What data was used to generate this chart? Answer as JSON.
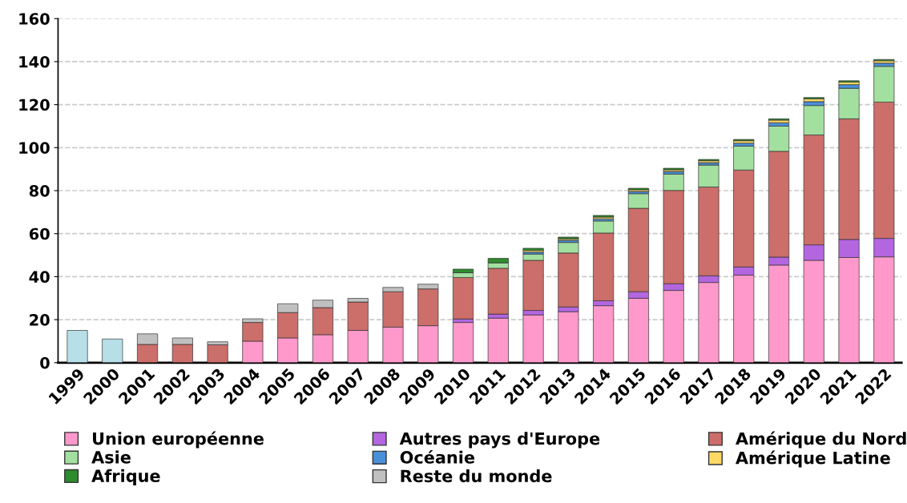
{
  "chart_data": {
    "type": "bar",
    "stacked": true,
    "categories": [
      "1999",
      "2000",
      "2001",
      "2002",
      "2003",
      "2004",
      "2005",
      "2006",
      "2007",
      "2008",
      "2009",
      "2010",
      "2011",
      "2012",
      "2013",
      "2014",
      "2015",
      "2016",
      "2017",
      "2018",
      "2019",
      "2020",
      "2021",
      "2022"
    ],
    "series": [
      {
        "color": "#b7dfe8",
        "values": [
          15,
          11,
          null,
          null,
          null,
          null,
          null,
          null,
          null,
          null,
          null,
          null,
          null,
          null,
          null,
          null,
          null,
          null,
          null,
          null,
          null,
          null,
          null,
          null
        ]
      },
      {
        "name": "Union européenne",
        "color": "#ff99cc",
        "values": [
          null,
          null,
          null,
          null,
          null,
          10,
          11.5,
          13,
          15,
          16.5,
          17.2,
          18.7,
          20.7,
          22.2,
          23.7,
          26.5,
          29.9,
          33.6,
          37.3,
          40.7,
          45.4,
          47.6,
          48.9,
          49.2
        ]
      },
      {
        "name": "Autres pays d'Europe",
        "color": "#b366e0",
        "values": [
          null,
          null,
          null,
          null,
          null,
          null,
          null,
          null,
          null,
          null,
          null,
          1.6,
          1.9,
          2.1,
          2.2,
          2.3,
          3.1,
          3.1,
          3.1,
          3.8,
          3.7,
          7.2,
          8.4,
          8.6
        ]
      },
      {
        "name": "Amérique du Nord",
        "color": "#cc6e6a",
        "values": [
          null,
          null,
          8.5,
          8.5,
          8.3,
          8.7,
          11.8,
          12.6,
          13.2,
          16.5,
          17.1,
          19.3,
          21.3,
          23.3,
          25.1,
          31.5,
          38.8,
          43.4,
          41.3,
          45.1,
          49.2,
          51.1,
          56.1,
          63.4
        ]
      },
      {
        "name": "Asie",
        "color": "#a3e0a0",
        "values": [
          null,
          null,
          null,
          null,
          null,
          null,
          null,
          null,
          null,
          null,
          null,
          2.2,
          2.5,
          2.9,
          4.9,
          5.6,
          6.8,
          7.6,
          10.2,
          11.1,
          11.7,
          13.7,
          14.2,
          16.6
        ]
      },
      {
        "name": "Océanie",
        "color": "#4a90d9",
        "values": [
          null,
          null,
          null,
          null,
          null,
          null,
          null,
          null,
          null,
          null,
          null,
          null,
          null,
          0.9,
          1.0,
          1.0,
          1.0,
          1.2,
          1.1,
          1.4,
          1.6,
          1.8,
          1.7,
          1.5
        ]
      },
      {
        "name": "Amérique Latine",
        "color": "#ffd966",
        "values": [
          null,
          null,
          null,
          null,
          null,
          null,
          null,
          null,
          null,
          null,
          null,
          null,
          null,
          0.8,
          0.7,
          0.8,
          0.8,
          0.8,
          0.9,
          1.1,
          1.2,
          1.3,
          1.2,
          1.1
        ]
      },
      {
        "name": "Afrique",
        "color": "#2e8b2e",
        "values": [
          null,
          null,
          null,
          null,
          null,
          null,
          null,
          null,
          null,
          null,
          null,
          1.7,
          2.1,
          1.0,
          0.8,
          0.8,
          0.7,
          0.7,
          0.6,
          0.6,
          0.6,
          0.6,
          0.6,
          0.6
        ]
      },
      {
        "name": "Reste du monde",
        "color": "#c0c0c0",
        "values": [
          null,
          null,
          4.9,
          3,
          1.4,
          1.7,
          4.1,
          3.5,
          1.7,
          2,
          2.2,
          null,
          null,
          null,
          null,
          null,
          null,
          null,
          null,
          null,
          null,
          null,
          null,
          null
        ]
      }
    ],
    "ylim": [
      0,
      160
    ],
    "yticks": [
      0,
      20,
      40,
      60,
      80,
      100,
      120,
      140,
      160
    ],
    "grid": "y",
    "legend": "bottom"
  }
}
